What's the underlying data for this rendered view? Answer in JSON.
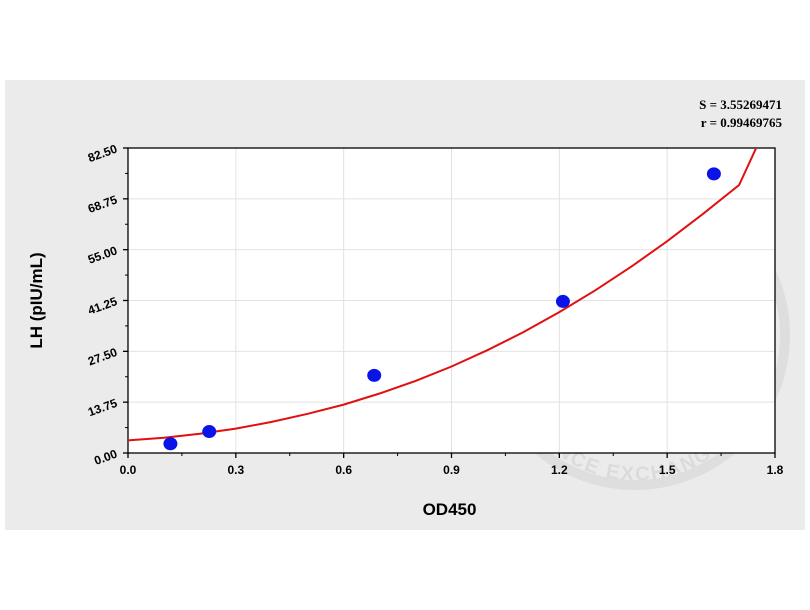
{
  "stats": {
    "s_label": "S = 3.55269471",
    "r_label": "r = 0.99469765"
  },
  "watermark": {
    "text": "THE SCIENCE EXCHANGE NETWORK",
    "icon": "checkmark-flask-icon"
  },
  "chart_data": {
    "type": "scatter",
    "xlabel": "OD450",
    "ylabel": "LH (pIU/mL)",
    "xlim": [
      0.0,
      1.8
    ],
    "ylim": [
      0.0,
      82.5
    ],
    "x_ticks": [
      "0.0",
      "0.3",
      "0.6",
      "0.9",
      "1.2",
      "1.5",
      "1.8"
    ],
    "y_ticks": [
      "0.00",
      "13.75",
      "27.50",
      "41.25",
      "55.00",
      "68.75",
      "82.50"
    ],
    "grid": true,
    "series": [
      {
        "kind": "points",
        "color": "#0a14e8",
        "x": [
          0.118,
          0.226,
          0.685,
          1.21,
          1.63
        ],
        "y": [
          2.5,
          5.8,
          21.0,
          41.0,
          75.5
        ]
      },
      {
        "kind": "fit-curve",
        "color": "#e01010",
        "x": [
          0.0,
          0.1,
          0.2,
          0.3,
          0.4,
          0.5,
          0.6,
          0.7,
          0.8,
          0.9,
          1.0,
          1.1,
          1.2,
          1.3,
          1.4,
          1.5,
          1.6,
          1.7,
          1.75
        ],
        "y": [
          3.4,
          4.1,
          5.2,
          6.6,
          8.4,
          10.6,
          13.1,
          16.1,
          19.5,
          23.4,
          27.8,
          32.7,
          38.1,
          44.0,
          50.4,
          57.3,
          64.7,
          72.5,
          83.0
        ]
      }
    ]
  }
}
